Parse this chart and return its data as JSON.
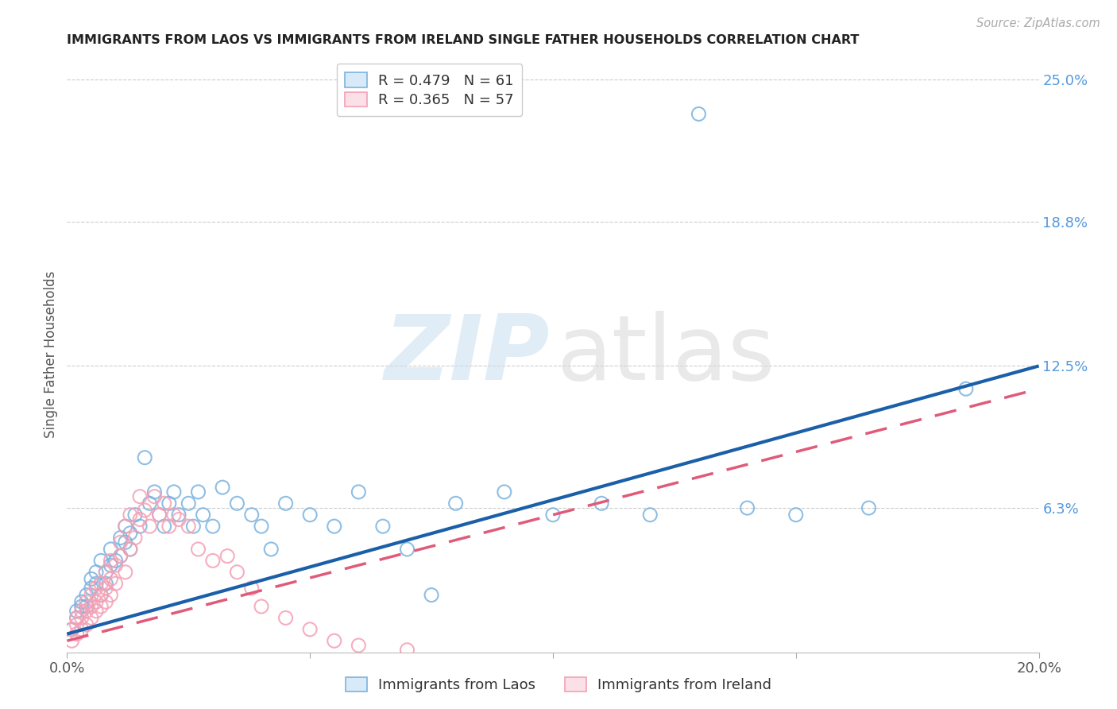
{
  "title": "IMMIGRANTS FROM LAOS VS IMMIGRANTS FROM IRELAND SINGLE FATHER HOUSEHOLDS CORRELATION CHART",
  "source": "Source: ZipAtlas.com",
  "xlabel": "",
  "ylabel": "Single Father Households",
  "xlim": [
    0.0,
    0.2
  ],
  "ylim": [
    0.0,
    0.26
  ],
  "xticks": [
    0.0,
    0.05,
    0.1,
    0.15,
    0.2
  ],
  "xticklabels": [
    "0.0%",
    "",
    "",
    "",
    "20.0%"
  ],
  "ytick_labels_right": [
    "25.0%",
    "18.8%",
    "12.5%",
    "6.3%"
  ],
  "ytick_vals_right": [
    0.25,
    0.188,
    0.125,
    0.063
  ],
  "blue_R": 0.479,
  "blue_N": 61,
  "pink_R": 0.365,
  "pink_N": 57,
  "blue_color": "#7ab3e0",
  "pink_color": "#f4a0b5",
  "blue_line_color": "#1a5fa8",
  "pink_line_color": "#e05a7a",
  "background_color": "#ffffff",
  "grid_color": "#cccccc",
  "watermark_color_zip": "#c8dff0",
  "watermark_color_atlas": "#d8d8d8",
  "legend_label_blue": "Immigrants from Laos",
  "legend_label_pink": "Immigrants from Ireland",
  "blue_line_x0": 0.0,
  "blue_line_y0": 0.008,
  "blue_line_x1": 0.2,
  "blue_line_y1": 0.125,
  "pink_line_x0": 0.0,
  "pink_line_y0": 0.005,
  "pink_line_x1": 0.2,
  "pink_line_y1": 0.115,
  "blue_scatter_x": [
    0.001,
    0.002,
    0.002,
    0.003,
    0.003,
    0.004,
    0.004,
    0.005,
    0.005,
    0.006,
    0.006,
    0.007,
    0.007,
    0.008,
    0.008,
    0.009,
    0.009,
    0.01,
    0.011,
    0.011,
    0.012,
    0.012,
    0.013,
    0.013,
    0.014,
    0.015,
    0.016,
    0.017,
    0.018,
    0.019,
    0.02,
    0.021,
    0.022,
    0.023,
    0.025,
    0.026,
    0.027,
    0.028,
    0.03,
    0.032,
    0.035,
    0.038,
    0.04,
    0.042,
    0.045,
    0.05,
    0.055,
    0.06,
    0.065,
    0.07,
    0.075,
    0.08,
    0.09,
    0.1,
    0.11,
    0.12,
    0.14,
    0.15,
    0.165,
    0.185,
    0.13
  ],
  "blue_scatter_y": [
    0.01,
    0.015,
    0.018,
    0.02,
    0.022,
    0.025,
    0.02,
    0.028,
    0.032,
    0.03,
    0.035,
    0.025,
    0.04,
    0.035,
    0.03,
    0.038,
    0.045,
    0.04,
    0.05,
    0.042,
    0.048,
    0.055,
    0.045,
    0.052,
    0.06,
    0.055,
    0.085,
    0.065,
    0.07,
    0.06,
    0.055,
    0.065,
    0.07,
    0.06,
    0.065,
    0.055,
    0.07,
    0.06,
    0.055,
    0.072,
    0.065,
    0.06,
    0.055,
    0.045,
    0.065,
    0.06,
    0.055,
    0.07,
    0.055,
    0.045,
    0.025,
    0.065,
    0.07,
    0.06,
    0.065,
    0.06,
    0.063,
    0.06,
    0.063,
    0.115,
    0.235
  ],
  "pink_scatter_x": [
    0.001,
    0.001,
    0.002,
    0.002,
    0.002,
    0.003,
    0.003,
    0.003,
    0.004,
    0.004,
    0.004,
    0.005,
    0.005,
    0.005,
    0.006,
    0.006,
    0.006,
    0.007,
    0.007,
    0.007,
    0.008,
    0.008,
    0.008,
    0.009,
    0.009,
    0.009,
    0.01,
    0.01,
    0.011,
    0.011,
    0.012,
    0.012,
    0.013,
    0.013,
    0.014,
    0.015,
    0.015,
    0.016,
    0.017,
    0.018,
    0.019,
    0.02,
    0.021,
    0.022,
    0.023,
    0.025,
    0.027,
    0.03,
    0.033,
    0.035,
    0.038,
    0.04,
    0.045,
    0.05,
    0.055,
    0.06,
    0.07
  ],
  "pink_scatter_y": [
    0.005,
    0.01,
    0.008,
    0.012,
    0.015,
    0.01,
    0.015,
    0.018,
    0.012,
    0.018,
    0.022,
    0.015,
    0.02,
    0.025,
    0.018,
    0.022,
    0.028,
    0.02,
    0.025,
    0.03,
    0.022,
    0.028,
    0.035,
    0.025,
    0.032,
    0.04,
    0.03,
    0.038,
    0.042,
    0.048,
    0.035,
    0.055,
    0.045,
    0.06,
    0.05,
    0.058,
    0.068,
    0.062,
    0.055,
    0.068,
    0.06,
    0.065,
    0.055,
    0.06,
    0.058,
    0.055,
    0.045,
    0.04,
    0.042,
    0.035,
    0.028,
    0.02,
    0.015,
    0.01,
    0.005,
    0.003,
    0.001
  ]
}
